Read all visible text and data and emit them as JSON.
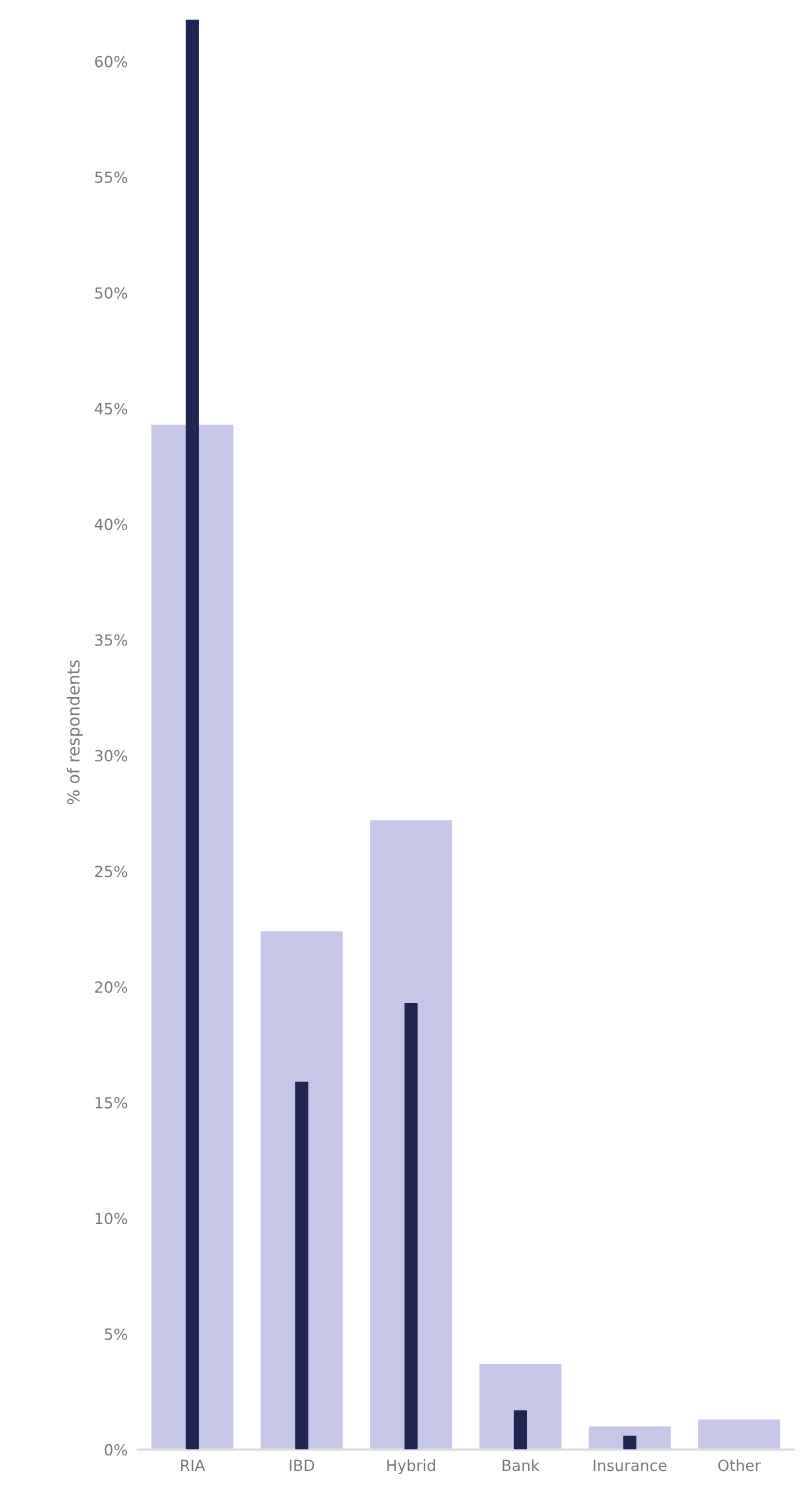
{
  "chart_data": {
    "type": "bar",
    "ylabel": "% of respondents",
    "categories": [
      "RIA",
      "IBD",
      "Hybrid",
      "Bank",
      "Insurance",
      "Other"
    ],
    "series": [
      {
        "color": "#c6c6e8",
        "values": [
          44.3,
          22.4,
          27.2,
          3.7,
          1.0,
          1.3
        ]
      },
      {
        "color": "#1f2452",
        "values": [
          61.8,
          15.9,
          19.3,
          1.7,
          0.6,
          0
        ]
      }
    ],
    "ylim": [
      0,
      62
    ],
    "yticks": [
      {
        "value": 0,
        "label": "0%"
      },
      {
        "value": 5,
        "label": "5%"
      },
      {
        "value": 10,
        "label": "10%"
      },
      {
        "value": 15,
        "label": "15%"
      },
      {
        "value": 20,
        "label": "20%"
      },
      {
        "value": 25,
        "label": "25%"
      },
      {
        "value": 30,
        "label": "30%"
      },
      {
        "value": 35,
        "label": "35%"
      },
      {
        "value": 40,
        "label": "40%"
      },
      {
        "value": 45,
        "label": "45%"
      },
      {
        "value": 50,
        "label": "50%"
      },
      {
        "value": 55,
        "label": "55%"
      },
      {
        "value": 60,
        "label": "60%"
      }
    ]
  }
}
